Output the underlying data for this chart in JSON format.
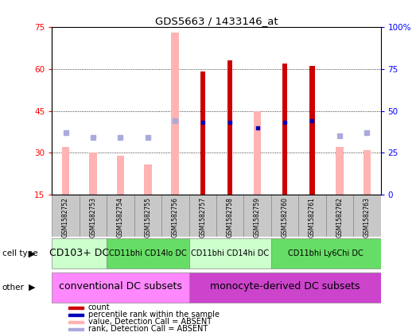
{
  "title": "GDS5663 / 1433146_at",
  "samples": [
    "GSM1582752",
    "GSM1582753",
    "GSM1582754",
    "GSM1582755",
    "GSM1582756",
    "GSM1582757",
    "GSM1582758",
    "GSM1582759",
    "GSM1582760",
    "GSM1582761",
    "GSM1582762",
    "GSM1582763"
  ],
  "count_values": [
    null,
    null,
    null,
    null,
    null,
    59,
    63,
    null,
    62,
    61,
    null,
    null
  ],
  "rank_values": [
    null,
    null,
    null,
    null,
    null,
    43,
    43,
    40,
    43,
    44,
    null,
    null
  ],
  "absent_value_bars": [
    32,
    30,
    29,
    26,
    73,
    null,
    null,
    45,
    null,
    null,
    32,
    31
  ],
  "absent_rank_dots": [
    37,
    34,
    34,
    34,
    44,
    null,
    null,
    null,
    null,
    null,
    35,
    37
  ],
  "ylim_left": [
    15,
    75
  ],
  "ylim_right": [
    0,
    100
  ],
  "yticks_left": [
    15,
    30,
    45,
    60,
    75
  ],
  "yticks_right": [
    0,
    25,
    50,
    75,
    100
  ],
  "ytick_labels_right": [
    "0",
    "25",
    "50",
    "75",
    "100%"
  ],
  "color_dark_red": "#cc0000",
  "color_blue": "#0000bb",
  "color_pink": "#ffb3b3",
  "color_light_blue": "#aaaadd",
  "color_sample_bg": "#c8c8c8",
  "cell_type_groups": [
    {
      "label": "CD103+ DC",
      "start": 0,
      "end": 2,
      "color": "#ccffcc",
      "fontsize": 9
    },
    {
      "label": "CD11bhi CD14lo DC",
      "start": 2,
      "end": 5,
      "color": "#66dd66",
      "fontsize": 7
    },
    {
      "label": "CD11bhi CD14hi DC",
      "start": 5,
      "end": 8,
      "color": "#ccffcc",
      "fontsize": 7
    },
    {
      "label": "CD11bhi Ly6Chi DC",
      "start": 8,
      "end": 12,
      "color": "#66dd66",
      "fontsize": 7
    }
  ],
  "other_groups": [
    {
      "label": "conventional DC subsets",
      "start": 0,
      "end": 5,
      "color": "#ff88ff",
      "fontsize": 9
    },
    {
      "label": "monocyte-derived DC subsets",
      "start": 5,
      "end": 12,
      "color": "#cc44cc",
      "fontsize": 9
    }
  ],
  "legend_items": [
    {
      "label": "count",
      "color": "#cc0000"
    },
    {
      "label": "percentile rank within the sample",
      "color": "#0000bb"
    },
    {
      "label": "value, Detection Call = ABSENT",
      "color": "#ffb3b3"
    },
    {
      "label": "rank, Detection Call = ABSENT",
      "color": "#aaaadd"
    }
  ]
}
